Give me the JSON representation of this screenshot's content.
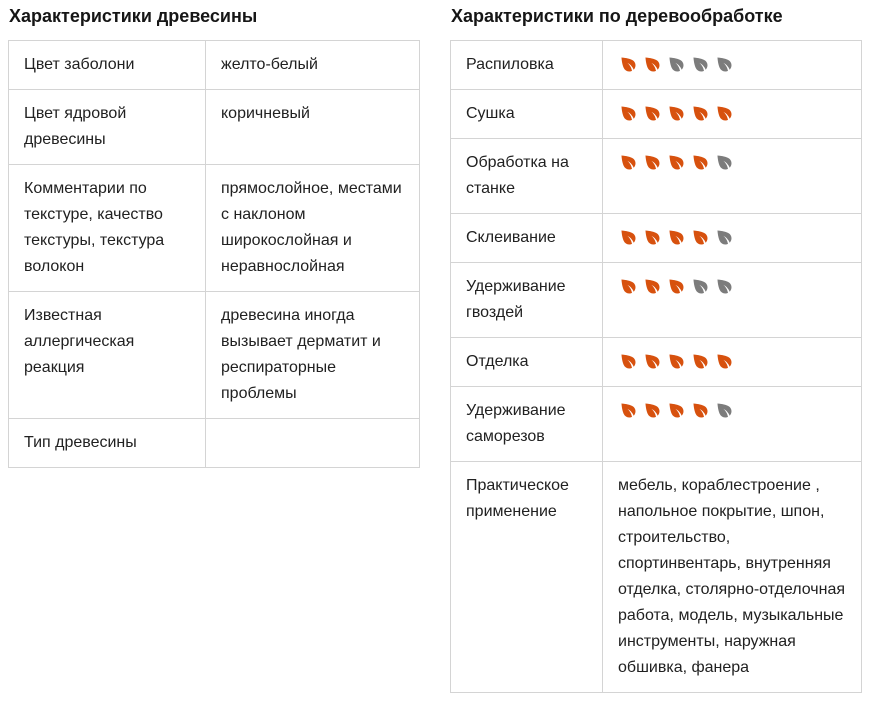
{
  "rating_max": 5,
  "colors": {
    "leaf_active": "#d7510e",
    "leaf_inactive": "#7c7c7c"
  },
  "left_table": {
    "title": "Характеристики древесины",
    "rows": [
      {
        "label": "Цвет заболони",
        "value": "желто-белый"
      },
      {
        "label": "Цвет ядровой древесины",
        "value": "коричневый"
      },
      {
        "label": "Комментарии по текстуре, качество текстуры, текстура волокон",
        "value": "прямослойное, местами с наклоном широкослойная и неравнослойная"
      },
      {
        "label": "Известная аллергическая реакция",
        "value": "древесина иногда вызывает дерматит и респираторные проблемы"
      },
      {
        "label": "Тип древесины",
        "value": ""
      }
    ]
  },
  "right_table": {
    "title": "Характеристики по деревообработке",
    "rating_rows": [
      {
        "label": "Распиловка",
        "rating": 2
      },
      {
        "label": "Сушка",
        "rating": 5
      },
      {
        "label": "Обработка на станке",
        "rating": 4
      },
      {
        "label": "Склеивание",
        "rating": 4
      },
      {
        "label": "Удерживание гвоздей",
        "rating": 3
      },
      {
        "label": "Отделка",
        "rating": 5
      },
      {
        "label": "Удерживание саморезов",
        "rating": 4
      }
    ],
    "text_rows": [
      {
        "label": "Практическое применение",
        "value": "мебель, кораблестроение , напольное покрытие, шпон, строительство, спортинвентарь, внутренняя отделка, столярно-отделочная работа, модель, музыкальные инструменты, наружная обшивка, фанера"
      }
    ]
  }
}
